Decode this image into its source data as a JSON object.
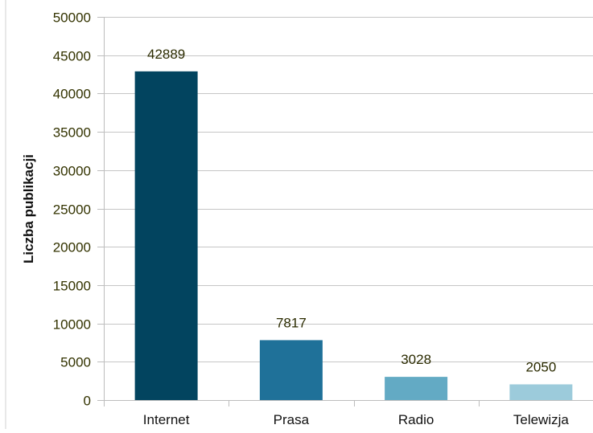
{
  "chart_data": {
    "type": "bar",
    "title": "",
    "xlabel": "",
    "ylabel": "Liczba publikacji",
    "categories": [
      "Internet",
      "Prasa",
      "Radio",
      "Telewizja"
    ],
    "values": [
      42889,
      7817,
      3028,
      2050
    ],
    "data_labels": [
      "42889",
      "7817",
      "3028",
      "2050"
    ],
    "ylim": [
      0,
      50000
    ],
    "y_ticks": [
      0,
      5000,
      10000,
      15000,
      20000,
      25000,
      30000,
      35000,
      40000,
      45000,
      50000
    ],
    "y_tick_labels": [
      "0",
      "5000",
      "10000",
      "15000",
      "20000",
      "25000",
      "30000",
      "35000",
      "40000",
      "45000",
      "50000"
    ],
    "grid": true,
    "legend": "none",
    "colors": [
      "#02445f",
      "#1f7199",
      "#63aac4",
      "#9ccbdb"
    ],
    "grid_color": "#c6c6c6",
    "axis_color": "#bdbdbd",
    "tick_label_color": "#333300",
    "data_label_color": "#2b2b00"
  }
}
